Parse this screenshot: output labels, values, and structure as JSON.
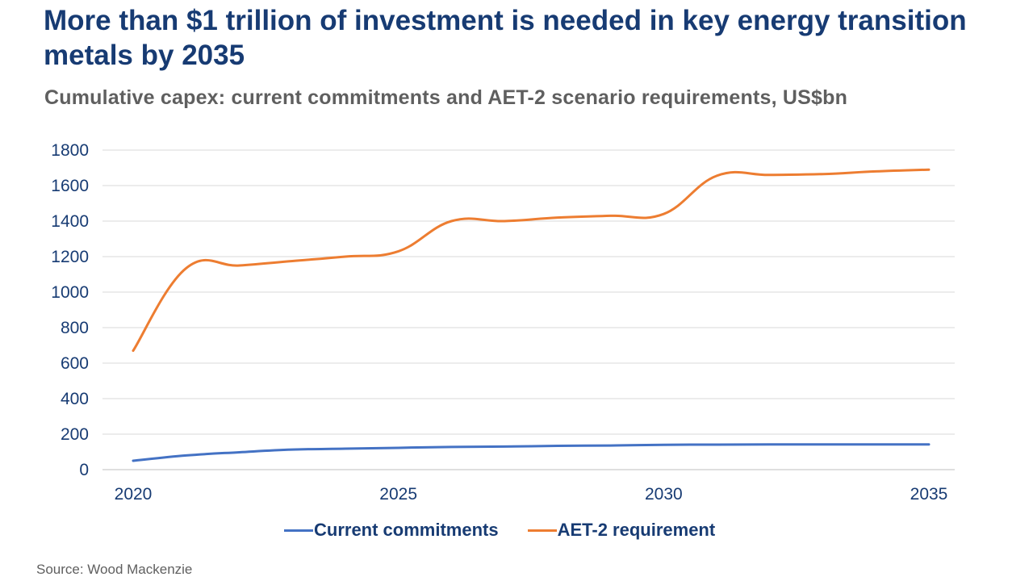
{
  "title": "More than $1 trillion of investment is needed in key energy transition metals by 2035",
  "subtitle": "Cumulative capex: current commitments and AET-2 scenario requirements, US$bn",
  "source": "Source: Wood Mackenzie",
  "chart_data": {
    "type": "line",
    "x": [
      2020,
      2021,
      2022,
      2023,
      2024,
      2025,
      2026,
      2027,
      2028,
      2029,
      2030,
      2031,
      2032,
      2033,
      2034,
      2035
    ],
    "x_tick_labels": [
      "2020",
      "2025",
      "2030",
      "2035"
    ],
    "x_ticks": [
      2020,
      2025,
      2030,
      2035
    ],
    "y_ticks": [
      0,
      200,
      400,
      600,
      800,
      1000,
      1200,
      1400,
      1600,
      1800
    ],
    "ylim": [
      0,
      1800
    ],
    "grid": true,
    "legend_position": "bottom",
    "series": [
      {
        "name": "Current commitments",
        "color": "#4472c4",
        "values": [
          50,
          80,
          98,
          113,
          118,
          123,
          128,
          130,
          134,
          136,
          140,
          141,
          142,
          142,
          142,
          142
        ]
      },
      {
        "name": "AET-2 requirement",
        "color": "#ed7d31",
        "values": [
          670,
          1135,
          1150,
          1175,
          1200,
          1230,
          1400,
          1400,
          1420,
          1430,
          1440,
          1655,
          1660,
          1665,
          1680,
          1690
        ]
      }
    ]
  }
}
